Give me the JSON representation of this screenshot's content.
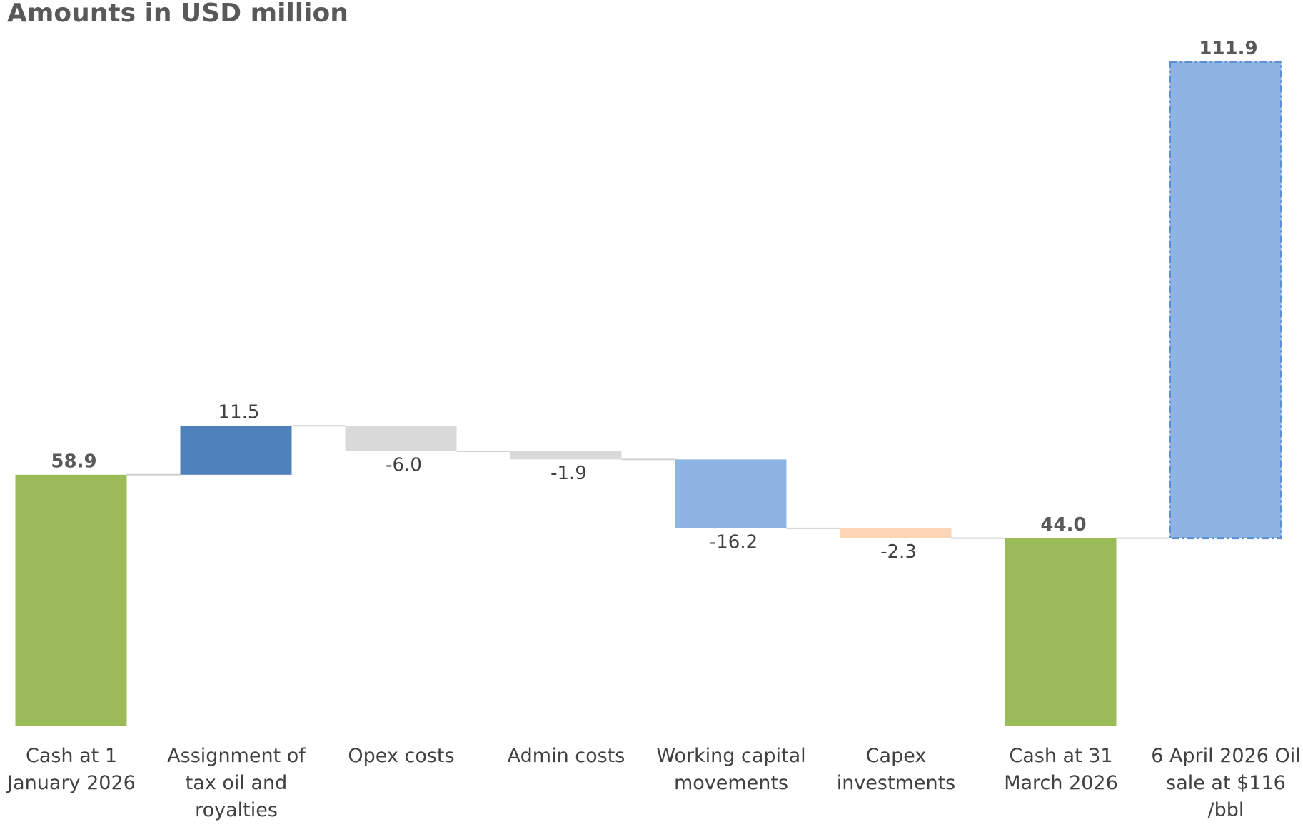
{
  "chart_data": {
    "type": "waterfall",
    "title": "Amounts in USD million",
    "categories": [
      "Cash at 1 January 2026",
      "Assignment of tax oil and royalties",
      "Opex costs",
      "Admin costs",
      "Working capital movements",
      "Capex investments",
      "Cash at 31 March 2026",
      "6 April 2026 Oil sale at $116 /bbl"
    ],
    "values": [
      58.9,
      11.5,
      -6.0,
      -1.9,
      -16.2,
      -2.3,
      44.0,
      111.9
    ],
    "value_labels": [
      "58.9",
      "11.5",
      "-6.0",
      "-1.9",
      "-16.2",
      "-2.3",
      "44.0",
      "111.9"
    ],
    "measures": [
      "total",
      "relative",
      "relative",
      "relative",
      "relative",
      "relative",
      "total",
      "relative"
    ],
    "colors": [
      "#9bbb59",
      "#4f81bd",
      "#d9d9d9",
      "#d9d9d9",
      "#8eb4e3",
      "#fcd5b5",
      "#9bbb59",
      "#8eb4e3"
    ],
    "dashed": [
      false,
      false,
      false,
      false,
      false,
      false,
      false,
      true
    ],
    "ylim": [
      0,
      160
    ]
  }
}
